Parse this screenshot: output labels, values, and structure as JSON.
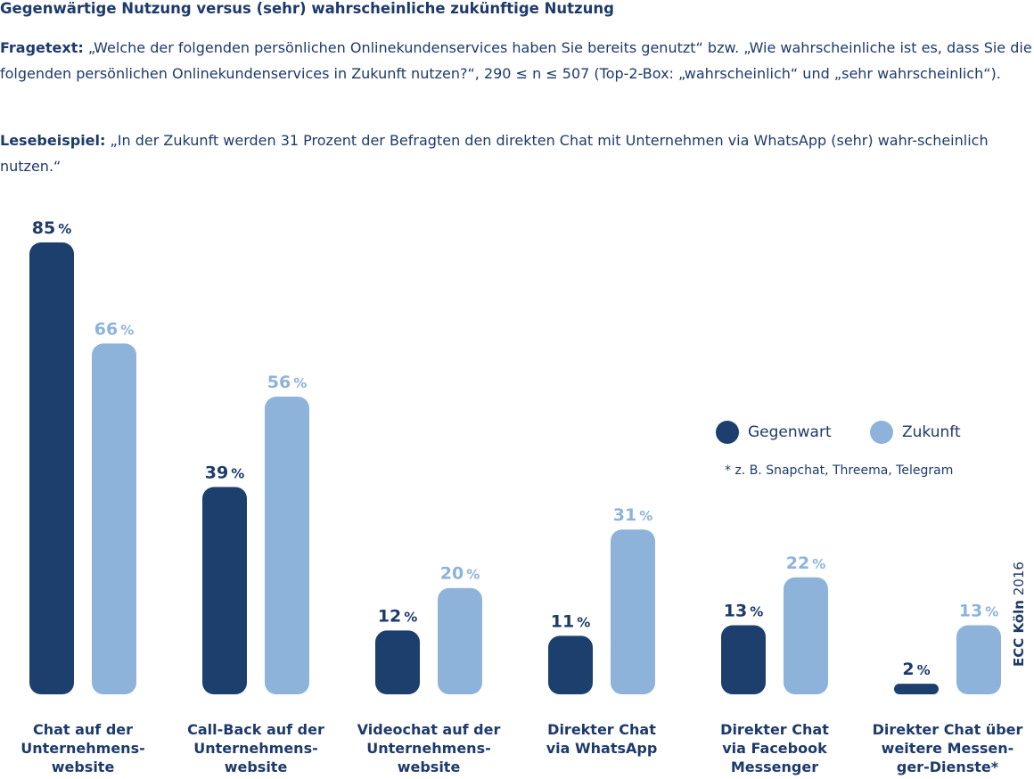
{
  "title": "Gegenwärtige Nutzung versus (sehr) wahrscheinliche zukünftige Nutzung",
  "fragetext": {
    "label": "Fragetext:",
    "text": "„Welche der folgenden persönlichen Onlinekundenservices haben Sie bereits genutzt“ bzw. „Wie wahrscheinliche ist es, dass Sie die folgenden persönlichen Onlinekundenservices in Zukunft nutzen?“, 290 ≤ n ≤ 507 (Top-2-Box: „wahrscheinlich“ und „sehr wahrscheinlich“)."
  },
  "lesebeispiel": {
    "label": "Lesebeispiel:",
    "text": "„In der Zukunft werden 31 Prozent der Befragten den direkten Chat mit Unternehmen via WhatsApp (sehr) wahr-scheinlich nutzen.“"
  },
  "footnote": "* z. B. Snapchat, Threema, Telegram",
  "credit": {
    "bold": "ECC Köln",
    "year": "2016"
  },
  "colors": {
    "gegenwart": "#1d3f6e",
    "zukunft": "#8db3da",
    "text": "#1d3a6b"
  },
  "chart_data": {
    "type": "bar",
    "unit": "%",
    "categories": [
      "Chat auf der Unternehmens-website",
      "Call-Back auf der Unternehmens-website",
      "Videochat auf der Unternehmens-website",
      "Direkter Chat via WhatsApp",
      "Direkter Chat via Facebook Messenger",
      "Direkter Chat über weitere Messen-ger-Dienste*"
    ],
    "category_lines": [
      [
        "Chat auf der",
        "Unternehmens-",
        "website"
      ],
      [
        "Call-Back auf der",
        "Unternehmens-",
        "website"
      ],
      [
        "Videochat auf der",
        "Unternehmens-",
        "website"
      ],
      [
        "Direkter Chat",
        "via WhatsApp"
      ],
      [
        "Direkter Chat",
        "via Facebook",
        "Messenger"
      ],
      [
        "Direkter Chat über",
        "weitere Messen-",
        "ger-Dienste*"
      ]
    ],
    "series": [
      {
        "name": "Gegenwart",
        "values": [
          85,
          39,
          12,
          11,
          13,
          2
        ]
      },
      {
        "name": "Zukunft",
        "values": [
          66,
          56,
          20,
          31,
          22,
          13
        ]
      }
    ],
    "ylim": [
      0,
      85
    ],
    "legend": "right"
  }
}
